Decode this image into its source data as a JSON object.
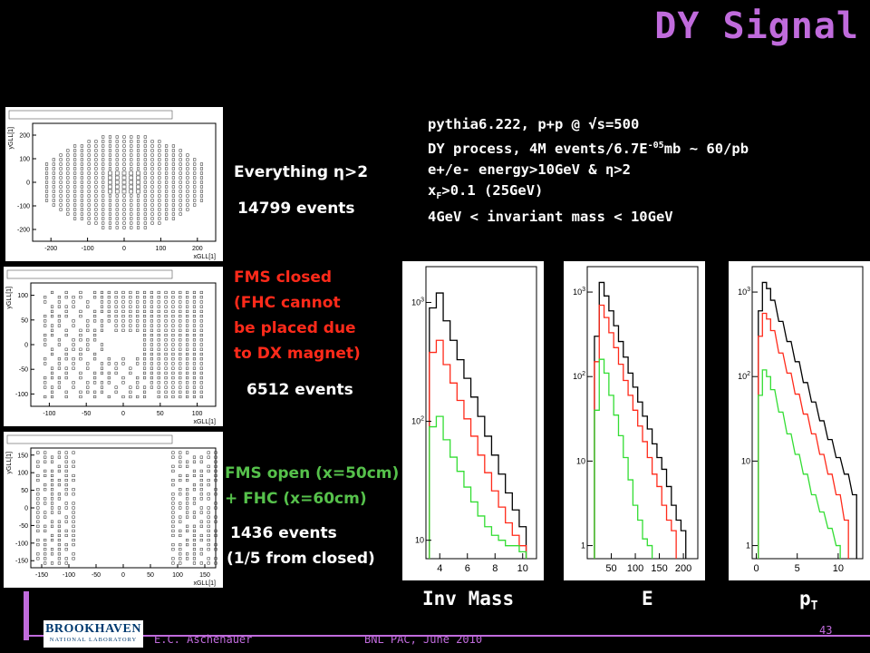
{
  "slide": {
    "title": "DY Signal",
    "info_lines": [
      "pythia6.222, p+p @ √s=500",
      "DY process, 4M events/6.7E",
      "e+/e- energy>10GeV & η>2",
      "x",
      "4GeV < invariant mass < 10GeV"
    ],
    "info_line2_sup": "-05",
    "info_line2_tail": "mb ~ 60/pb",
    "info_line4_sub": "F",
    "info_line4_tail": ">0.1 (25GeV)",
    "footer": {
      "author": "E.C. Aschenauer",
      "event": "BNL PAC, June 2010",
      "page": "43"
    },
    "logo": {
      "line1": "BROOKHAVEN",
      "line2": "NATIONAL LABORATORY"
    }
  },
  "scenarios": [
    {
      "label_lines": [
        "Everything η>2"
      ],
      "events_lines": [
        "14799 events"
      ],
      "color": "#ffffff"
    },
    {
      "label_lines": [
        "FMS closed",
        "(FHC cannot",
        "be placed due",
        "to DX magnet)"
      ],
      "events_lines": [
        "6512 events"
      ],
      "color": "#ff2a1a"
    },
    {
      "label_lines": [
        "FMS open (x=50cm)",
        "+ FHC (x=60cm)"
      ],
      "events_lines": [
        "1436 events",
        "(1/5 from closed)"
      ],
      "color": "#56c14b"
    }
  ],
  "chart_data": [
    {
      "type": "scatter",
      "title": "",
      "xlabel": "xGLL[1]",
      "ylabel": "yGLL[1]",
      "xlim": [
        -250,
        250
      ],
      "ylim": [
        -250,
        250
      ],
      "xticks": [
        "-200",
        "-100",
        "0",
        "100",
        "200"
      ],
      "yticks": [
        "-200",
        "-100",
        "0",
        "100",
        "200"
      ],
      "pattern": "full ellipse of hits, no hole"
    },
    {
      "type": "scatter",
      "title": "",
      "xlabel": "xGLL[1]",
      "ylabel": "yGLL[1]",
      "xlim": [
        -125,
        125
      ],
      "ylim": [
        -125,
        125
      ],
      "xticks": [
        "-100",
        "-50",
        "0",
        "50",
        "100"
      ],
      "yticks": [
        "-100",
        "-50",
        "0",
        "50",
        "100"
      ],
      "pattern": "square acceptance with central hole"
    },
    {
      "type": "scatter",
      "title": "",
      "xlabel": "xGLL[1]",
      "ylabel": "yGLL[1]",
      "xlim": [
        -170,
        170
      ],
      "ylim": [
        -170,
        170
      ],
      "xticks": [
        "-150",
        "-100",
        "-50",
        "0",
        "50",
        "100",
        "150"
      ],
      "yticks": [
        "-150",
        "-100",
        "-50",
        "0",
        "50",
        "100",
        "150"
      ],
      "pattern": "two separated vertical bands"
    },
    {
      "type": "line",
      "xlabel": "Inv Mass",
      "ylabel": "",
      "log_y": true,
      "xlim": [
        3,
        11
      ],
      "ylim": [
        7,
        2000
      ],
      "xticks": [
        "4",
        "6",
        "8",
        "10"
      ],
      "yticks": [
        "10",
        "10^2",
        "10^3"
      ],
      "series": [
        {
          "color": "#000000",
          "x": [
            3.5,
            4,
            4.5,
            5,
            5.5,
            6,
            6.5,
            7,
            7.5,
            8,
            8.5,
            9,
            9.5,
            10
          ],
          "values": [
            900,
            1200,
            700,
            480,
            330,
            230,
            160,
            110,
            75,
            52,
            36,
            25,
            18,
            13
          ]
        },
        {
          "color": "#ff2a1a",
          "x": [
            3.5,
            4,
            4.5,
            5,
            5.5,
            6,
            6.5,
            7,
            7.5,
            8,
            8.5,
            9,
            9.5,
            10
          ],
          "values": [
            380,
            480,
            300,
            210,
            150,
            105,
            75,
            52,
            37,
            26,
            19,
            14,
            11,
            9
          ]
        },
        {
          "color": "#33dd33",
          "x": [
            3.5,
            4,
            4.5,
            5,
            5.5,
            6,
            6.5,
            7,
            7.5,
            8,
            8.5,
            9,
            9.5,
            10
          ],
          "values": [
            90,
            110,
            70,
            50,
            38,
            28,
            21,
            16,
            13,
            11,
            10,
            9,
            9,
            8
          ]
        }
      ]
    },
    {
      "type": "line",
      "xlabel": "E",
      "ylabel": "",
      "log_y": true,
      "xlim": [
        0,
        230
      ],
      "ylim": [
        0.7,
        2000
      ],
      "xticks": [
        "50",
        "100",
        "150",
        "200"
      ],
      "yticks": [
        "1",
        "10",
        "10^2",
        "10^3"
      ],
      "series": [
        {
          "color": "#000000",
          "x": [
            20,
            30,
            40,
            50,
            60,
            70,
            80,
            90,
            100,
            110,
            120,
            130,
            140,
            150,
            160,
            170,
            180,
            190,
            200
          ],
          "values": [
            300,
            1300,
            900,
            600,
            400,
            260,
            170,
            110,
            75,
            50,
            34,
            24,
            16,
            11,
            8,
            5,
            3,
            2,
            1.5
          ]
        },
        {
          "color": "#ff2a1a",
          "x": [
            20,
            30,
            40,
            50,
            60,
            70,
            80,
            90,
            100,
            110,
            120,
            130,
            140,
            150,
            160,
            170,
            180
          ],
          "values": [
            150,
            700,
            500,
            330,
            220,
            140,
            90,
            60,
            40,
            26,
            17,
            11,
            7,
            5,
            3,
            2,
            1.5
          ]
        },
        {
          "color": "#33dd33",
          "x": [
            20,
            30,
            40,
            50,
            60,
            70,
            80,
            90,
            100,
            110,
            120,
            130
          ],
          "values": [
            40,
            160,
            110,
            60,
            35,
            20,
            11,
            6,
            3,
            2,
            1.2,
            1
          ]
        }
      ]
    },
    {
      "type": "line",
      "xlabel": "pT",
      "ylabel": "",
      "log_y": true,
      "xlim": [
        -0.5,
        13
      ],
      "ylim": [
        0.7,
        2000
      ],
      "xticks": [
        "0",
        "5",
        "10"
      ],
      "yticks": [
        "1",
        "10",
        "10^2",
        "10^3"
      ],
      "series": [
        {
          "color": "#000000",
          "x": [
            0.5,
            1,
            1.5,
            2,
            3,
            4,
            5,
            6,
            7,
            8,
            9,
            10,
            11,
            12
          ],
          "values": [
            600,
            1300,
            1100,
            800,
            450,
            260,
            150,
            85,
            50,
            30,
            18,
            11,
            7,
            4
          ]
        },
        {
          "color": "#ff2a1a",
          "x": [
            0.5,
            1,
            1.5,
            2,
            3,
            4,
            5,
            6,
            7,
            8,
            9,
            10,
            11
          ],
          "values": [
            300,
            560,
            480,
            350,
            190,
            110,
            62,
            36,
            21,
            12,
            7,
            4,
            2
          ]
        },
        {
          "color": "#33dd33",
          "x": [
            0.5,
            1,
            1.5,
            2,
            3,
            4,
            5,
            6,
            7,
            8,
            9,
            10
          ],
          "values": [
            60,
            120,
            100,
            70,
            38,
            21,
            12,
            7,
            4,
            2.5,
            1.6,
            1
          ]
        }
      ]
    }
  ]
}
